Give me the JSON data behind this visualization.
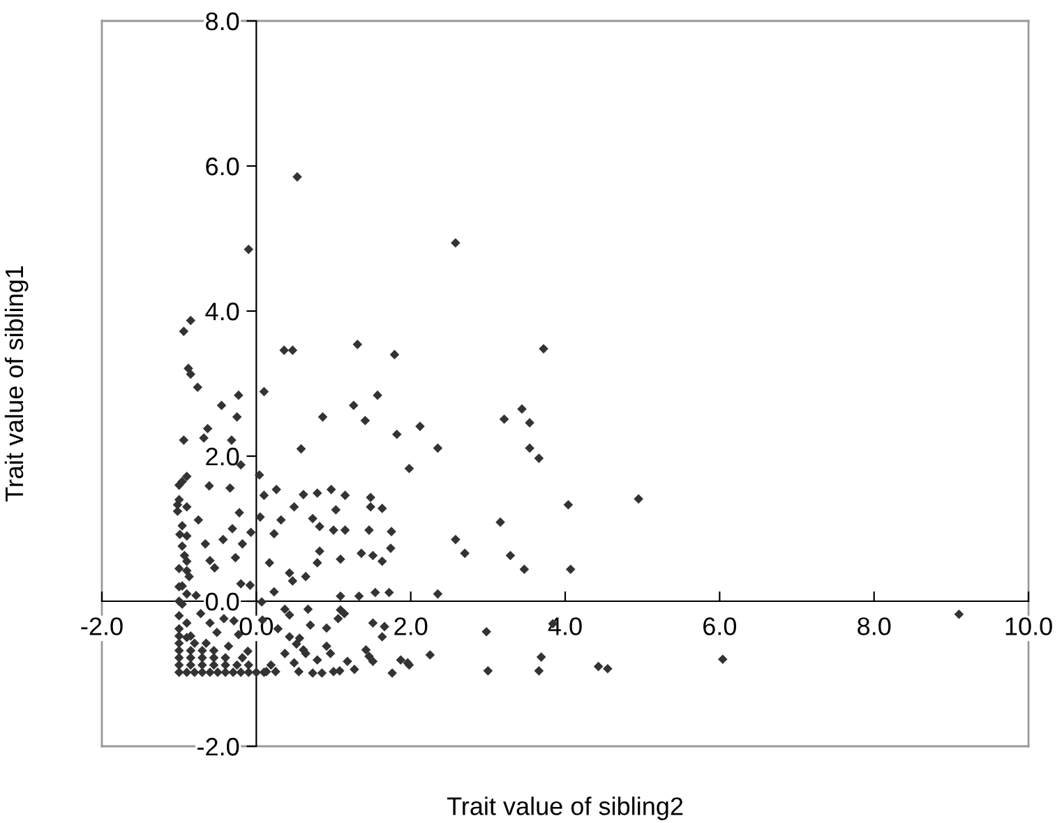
{
  "chart_data": {
    "type": "scatter",
    "xlabel": "Trait value of sibling2",
    "ylabel": "Trait value of sibling1",
    "xlim": [
      -2,
      10
    ],
    "ylim": [
      -2,
      8
    ],
    "xticks": [
      {
        "value": -2,
        "label": "-2.0"
      },
      {
        "value": 0,
        "label": "0.0"
      },
      {
        "value": 2,
        "label": "2.0"
      },
      {
        "value": 4,
        "label": "4.0"
      },
      {
        "value": 6,
        "label": "6.0"
      },
      {
        "value": 8,
        "label": "8.0"
      },
      {
        "value": 10,
        "label": "10.0"
      }
    ],
    "yticks": [
      {
        "value": -2,
        "label": "-2.0"
      },
      {
        "value": 0,
        "label": "0.0"
      },
      {
        "value": 2,
        "label": "2.0"
      },
      {
        "value": 4,
        "label": "4.0"
      },
      {
        "value": 6,
        "label": "6.0"
      },
      {
        "value": 8,
        "label": "8.0"
      }
    ],
    "marker": "diamond",
    "grid": false,
    "series": [
      {
        "color": "#333333",
        "x": [
          0.53,
          -0.1,
          -0.94,
          -0.85,
          0.36,
          0.47,
          1.31,
          1.79,
          -0.88,
          -0.85,
          -0.76,
          0.1,
          -0.23,
          -0.45,
          -0.25,
          0.86,
          1.26,
          1.57,
          1.41,
          2.12,
          1.82,
          -0.63,
          -0.68,
          -0.32,
          -0.94,
          0.58,
          2.58,
          3.72,
          3.21,
          3.44,
          3.54,
          3.54,
          3.66,
          2.35,
          1.98,
          4.04,
          4.95,
          3.16,
          2.58,
          2.7,
          3.29,
          3.47,
          4.07,
          2.35,
          3.84,
          2.98,
          3.69,
          3.66,
          3.0,
          4.43,
          4.55,
          2.25,
          1.98,
          9.1,
          6.04,
          -0.2,
          -0.96,
          -0.9,
          -0.61,
          -0.34,
          0.04,
          0.26,
          0.1,
          0.61,
          0.79,
          0.97,
          1.15,
          1.48,
          1.48,
          1.63,
          0.49,
          1.03,
          -1.02,
          -0.22,
          0.05,
          0.32,
          0.73,
          0.82,
          1.15,
          1.0,
          1.46,
          1.75,
          -0.75,
          -0.96,
          -0.31,
          0.23,
          -0.07,
          -0.43,
          -0.66,
          -0.18,
          -0.96,
          1.74,
          1.36,
          1.51,
          1.63,
          1.09,
          0.82,
          0.79,
          0.17,
          -0.6,
          -0.54,
          -0.27,
          -0.9,
          0.43,
          0.47,
          0.64,
          -0.2,
          -0.08,
          0.23,
          1.09,
          1.33,
          1.54,
          1.72,
          -0.96,
          -0.78,
          0.07,
          0.37,
          0.67,
          1.09,
          1.14,
          0.43,
          1.06,
          0.08,
          1.51,
          1.66,
          0.28,
          0.7,
          0.91,
          1.63,
          0.43,
          0.56,
          0.52,
          0.61,
          0.64,
          0.37,
          0.91,
          0.96,
          0.79,
          1.18,
          1.42,
          1.46,
          1.51,
          1.87,
          1.96,
          1.27,
          1.0,
          1.08,
          1.76,
          0.55,
          0.73,
          0.85,
          0.49,
          0.19,
          0.25,
          0.13,
          -1.02,
          -0.99,
          -0.93,
          -0.87,
          -0.96,
          -0.9,
          -0.72,
          -0.6,
          -0.42,
          -0.29,
          -0.51,
          -0.23,
          -0.36,
          -0.11,
          -0.18,
          -1.0,
          -0.9,
          -0.8,
          -0.7,
          -0.6,
          -0.5,
          -0.4,
          -0.3,
          -0.2,
          -0.1,
          0.0,
          0.1,
          -1.0,
          -0.85,
          -0.7,
          -0.55,
          -0.4,
          -0.25,
          -0.1,
          -1.0,
          -0.85,
          -0.7,
          -0.55,
          -0.4,
          -1.0,
          -0.85,
          -0.7,
          -0.55,
          -1.0,
          -0.8,
          -0.65,
          -1.0,
          -0.85,
          -1.0,
          -1.0,
          -1.0,
          -1.0,
          -1.0,
          -1.0,
          -1.0,
          -0.9,
          -0.9,
          -0.9,
          -0.9,
          -0.9
        ],
        "values": [
          5.85,
          4.85,
          3.72,
          3.87,
          3.46,
          3.46,
          3.54,
          3.4,
          3.21,
          3.13,
          2.95,
          2.89,
          2.84,
          2.7,
          2.54,
          2.54,
          2.7,
          2.84,
          2.49,
          2.41,
          2.3,
          2.38,
          2.25,
          2.22,
          2.22,
          2.1,
          4.94,
          3.48,
          2.51,
          2.65,
          2.46,
          2.11,
          1.97,
          2.11,
          1.83,
          1.33,
          1.41,
          1.09,
          0.85,
          0.66,
          0.63,
          0.44,
          0.44,
          0.1,
          -0.31,
          -0.42,
          -0.77,
          -0.96,
          -0.96,
          -0.9,
          -0.93,
          -0.74,
          -0.88,
          -0.18,
          -0.8,
          1.88,
          1.65,
          1.72,
          1.59,
          1.56,
          1.74,
          1.54,
          1.46,
          1.47,
          1.49,
          1.54,
          1.46,
          1.43,
          1.3,
          1.28,
          1.3,
          1.26,
          1.33,
          1.22,
          1.16,
          1.12,
          1.14,
          1.03,
          0.98,
          0.98,
          0.98,
          0.96,
          1.12,
          1.04,
          1.0,
          0.93,
          0.95,
          0.85,
          0.79,
          0.79,
          0.76,
          0.73,
          0.66,
          0.63,
          0.55,
          0.58,
          0.69,
          0.53,
          0.53,
          0.56,
          0.46,
          0.6,
          0.42,
          0.39,
          0.28,
          0.34,
          0.24,
          0.22,
          0.13,
          0.07,
          0.07,
          0.12,
          0.12,
          0.21,
          0.08,
          -0.01,
          -0.11,
          -0.11,
          -0.12,
          -0.17,
          -0.19,
          -0.24,
          -0.26,
          -0.3,
          -0.35,
          -0.38,
          -0.33,
          -0.37,
          -0.49,
          -0.49,
          -0.51,
          -0.59,
          -0.67,
          -0.72,
          -0.72,
          -0.62,
          -0.72,
          -0.81,
          -0.83,
          -0.67,
          -0.76,
          -0.83,
          -0.81,
          -0.85,
          -0.94,
          -0.97,
          -0.96,
          -0.99,
          -0.97,
          -0.99,
          -0.99,
          -0.85,
          -0.88,
          -0.97,
          -0.97,
          1.24,
          0.92,
          0.63,
          0.34,
          -0.04,
          -0.3,
          -0.17,
          -0.3,
          -0.24,
          -0.27,
          -0.43,
          -0.46,
          -0.62,
          -0.69,
          -0.78,
          -0.98,
          -0.98,
          -0.98,
          -0.98,
          -0.98,
          -0.98,
          -0.98,
          -0.98,
          -0.98,
          -0.98,
          -0.98,
          -0.98,
          -0.88,
          -0.88,
          -0.88,
          -0.88,
          -0.88,
          -0.88,
          -0.88,
          -0.78,
          -0.78,
          -0.78,
          -0.78,
          -0.78,
          -0.68,
          -0.68,
          -0.68,
          -0.68,
          -0.58,
          -0.58,
          -0.58,
          -0.48,
          -0.48,
          -0.38,
          -0.2,
          0.0,
          0.2,
          0.45,
          1.4,
          1.6,
          -0.5,
          0.1,
          0.55,
          0.9,
          1.3
        ]
      }
    ]
  }
}
